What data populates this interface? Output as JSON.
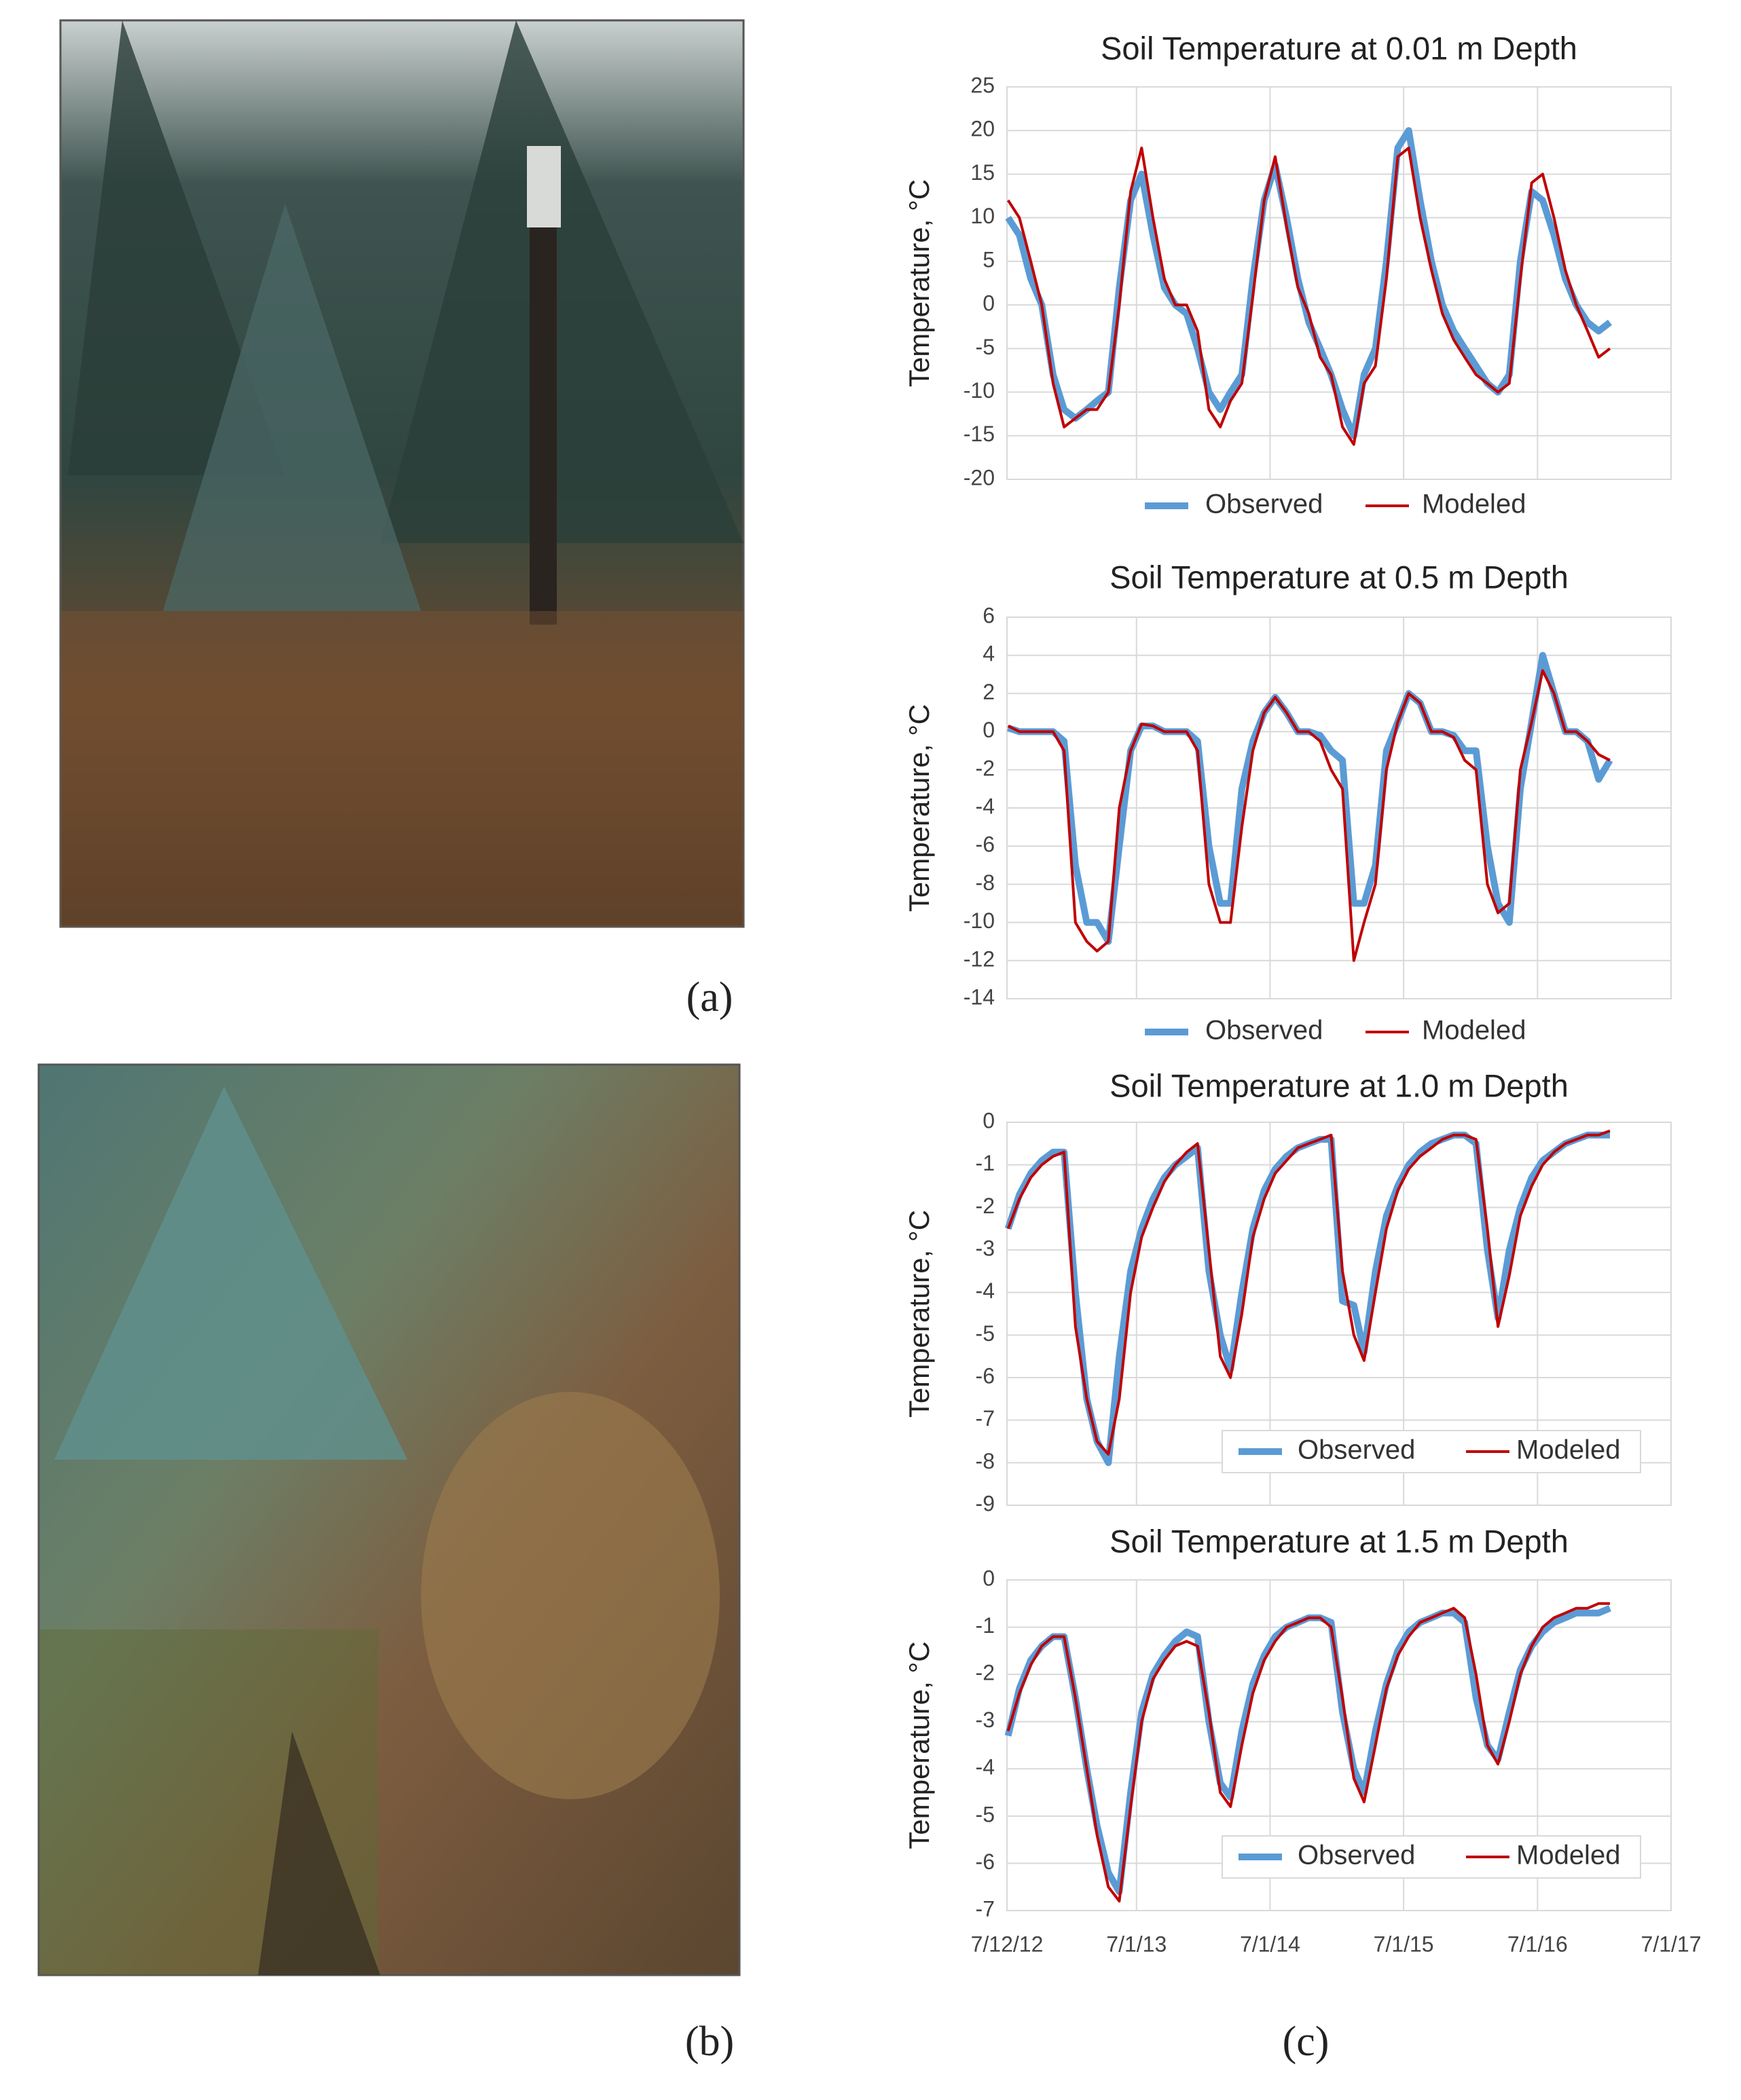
{
  "panel_labels": [
    "(a)",
    "(b)",
    "(c)"
  ],
  "chart_data": [
    {
      "type": "line",
      "title": "Soil Temperature at 0.01 m Depth",
      "y_label": "Temperature, °C",
      "legend": "bottom",
      "xlim": [
        "2012-07-12",
        "2017-07-01"
      ],
      "xticks": [
        "2012-07-12",
        "2013-07-01",
        "2014-07-01",
        "2015-07-01",
        "2016-07-01",
        "2017-07-01"
      ],
      "ylim": [
        -20,
        25
      ],
      "yticks": [
        -20,
        -15,
        -10,
        -5,
        0,
        5,
        10,
        15,
        20,
        25
      ],
      "grid": true,
      "x": [
        "2012-07-15",
        "2012-08-15",
        "2012-09-15",
        "2012-10-15",
        "2012-11-15",
        "2012-12-15",
        "2013-01-15",
        "2013-02-15",
        "2013-03-15",
        "2013-04-15",
        "2013-05-15",
        "2013-06-15",
        "2013-07-15",
        "2013-08-15",
        "2013-09-15",
        "2013-10-15",
        "2013-11-15",
        "2013-12-15",
        "2014-01-15",
        "2014-02-15",
        "2014-03-15",
        "2014-04-15",
        "2014-05-15",
        "2014-06-15",
        "2014-07-15",
        "2014-08-15",
        "2014-09-15",
        "2014-10-15",
        "2014-11-15",
        "2014-12-15",
        "2015-01-15",
        "2015-02-15",
        "2015-03-15",
        "2015-04-15",
        "2015-05-15",
        "2015-06-15",
        "2015-07-15",
        "2015-08-15",
        "2015-09-15",
        "2015-10-15",
        "2015-11-15",
        "2015-12-15",
        "2016-01-15",
        "2016-02-15",
        "2016-03-15",
        "2016-04-15",
        "2016-05-15",
        "2016-06-15",
        "2016-07-15",
        "2016-08-15",
        "2016-09-15",
        "2016-10-15",
        "2016-11-15",
        "2016-12-15",
        "2017-01-15"
      ],
      "series": [
        {
          "name": "Observed",
          "color": "#5b9bd5",
          "values": [
            10,
            8,
            3,
            0,
            -8,
            -12,
            -13,
            -12,
            -11,
            -10,
            2,
            12,
            15,
            8,
            2,
            0,
            -1,
            -5,
            -10,
            -12,
            -10,
            -8,
            3,
            12,
            16,
            10,
            3,
            -2,
            -5,
            -8,
            -12,
            -15,
            -8,
            -5,
            5,
            18,
            20,
            12,
            5,
            0,
            -3,
            -5,
            -7,
            -9,
            -10,
            -8,
            5,
            13,
            12,
            8,
            3,
            0,
            -2,
            -3,
            -2
          ]
        },
        {
          "name": "Modeled",
          "color": "#c00000",
          "values": [
            12,
            10,
            5,
            0,
            -9,
            -14,
            -13,
            -12,
            -12,
            -10,
            0,
            13,
            18,
            10,
            3,
            0,
            0,
            -3,
            -12,
            -14,
            -11,
            -9,
            1,
            12,
            17,
            9,
            2,
            -1,
            -6,
            -8,
            -14,
            -16,
            -9,
            -7,
            3,
            17,
            18,
            10,
            4,
            -1,
            -4,
            -6,
            -8,
            -9,
            -10,
            -9,
            3,
            14,
            15,
            10,
            4,
            0,
            -3,
            -6,
            -5
          ]
        }
      ]
    },
    {
      "type": "line",
      "title": "Soil Temperature at 0.5 m Depth",
      "y_label": "Temperature, °C",
      "legend": "bottom",
      "xlim": [
        "2012-07-12",
        "2017-07-01"
      ],
      "xticks": [
        "2012-07-12",
        "2013-07-01",
        "2014-07-01",
        "2015-07-01",
        "2016-07-01",
        "2017-07-01"
      ],
      "ylim": [
        -14,
        6
      ],
      "yticks": [
        -14,
        -12,
        -10,
        -8,
        -6,
        -4,
        -2,
        0,
        2,
        4,
        6
      ],
      "grid": true,
      "x": [
        "2012-07-15",
        "2012-08-15",
        "2012-09-15",
        "2012-10-15",
        "2012-11-15",
        "2012-12-15",
        "2013-01-15",
        "2013-02-15",
        "2013-03-15",
        "2013-04-15",
        "2013-05-15",
        "2013-06-15",
        "2013-07-15",
        "2013-08-15",
        "2013-09-15",
        "2013-10-15",
        "2013-11-15",
        "2013-12-15",
        "2014-01-15",
        "2014-02-15",
        "2014-03-15",
        "2014-04-15",
        "2014-05-15",
        "2014-06-15",
        "2014-07-15",
        "2014-08-15",
        "2014-09-15",
        "2014-10-15",
        "2014-11-15",
        "2014-12-15",
        "2015-01-15",
        "2015-02-15",
        "2015-03-15",
        "2015-04-15",
        "2015-05-15",
        "2015-06-15",
        "2015-07-15",
        "2015-08-15",
        "2015-09-15",
        "2015-10-15",
        "2015-11-15",
        "2015-12-15",
        "2016-01-15",
        "2016-02-15",
        "2016-03-15",
        "2016-04-15",
        "2016-05-15",
        "2016-06-15",
        "2016-07-15",
        "2016-08-15",
        "2016-09-15",
        "2016-10-15",
        "2016-11-15",
        "2016-12-15",
        "2017-01-15"
      ],
      "series": [
        {
          "name": "Observed",
          "color": "#5b9bd5",
          "values": [
            0.2,
            0,
            0,
            0,
            0,
            -0.5,
            -7,
            -10,
            -10,
            -11,
            -6,
            -1,
            0.3,
            0.3,
            0,
            0,
            0,
            -0.5,
            -6,
            -9,
            -9,
            -3,
            -0.5,
            1,
            1.8,
            1,
            0,
            0,
            -0.2,
            -1,
            -1.5,
            -9,
            -9,
            -7,
            -1,
            0.5,
            2,
            1.5,
            0,
            0,
            -0.2,
            -1,
            -1,
            -6,
            -9,
            -10,
            -3,
            0.5,
            4,
            2,
            0,
            0,
            -0.5,
            -2.5,
            -1.5
          ]
        },
        {
          "name": "Modeled",
          "color": "#c00000",
          "values": [
            0.3,
            0,
            0,
            0,
            0,
            -1,
            -10,
            -11,
            -11.5,
            -11,
            -4,
            -1,
            0.4,
            0.3,
            0,
            0,
            0,
            -1,
            -8,
            -10,
            -10,
            -5,
            -1,
            1,
            1.8,
            1,
            0,
            0,
            -0.5,
            -2,
            -3,
            -12,
            -10,
            -8,
            -2,
            0.5,
            2,
            1.5,
            0,
            0,
            -0.3,
            -1.5,
            -2,
            -8,
            -9.5,
            -9,
            -2,
            0.5,
            3.2,
            2,
            0,
            0,
            -0.5,
            -1.2,
            -1.5
          ]
        }
      ]
    },
    {
      "type": "line",
      "title": "Soil Temperature at 1.0 m Depth",
      "y_label": "Temperature, °C",
      "legend": "lower right",
      "xlim": [
        "2012-07-12",
        "2017-07-01"
      ],
      "xticks": [
        "2012-07-12",
        "2013-07-01",
        "2014-07-01",
        "2015-07-01",
        "2016-07-01",
        "2017-07-01"
      ],
      "ylim": [
        -9,
        0
      ],
      "yticks": [
        -9,
        -8,
        -7,
        -6,
        -5,
        -4,
        -3,
        -2,
        -1,
        0
      ],
      "grid": true,
      "x": [
        "2012-07-15",
        "2012-08-15",
        "2012-09-15",
        "2012-10-15",
        "2012-11-15",
        "2012-12-15",
        "2013-01-15",
        "2013-02-15",
        "2013-03-15",
        "2013-04-15",
        "2013-05-15",
        "2013-06-15",
        "2013-07-15",
        "2013-08-15",
        "2013-09-15",
        "2013-10-15",
        "2013-11-15",
        "2013-12-15",
        "2014-01-15",
        "2014-02-15",
        "2014-03-15",
        "2014-04-15",
        "2014-05-15",
        "2014-06-15",
        "2014-07-15",
        "2014-08-15",
        "2014-09-15",
        "2014-10-15",
        "2014-11-15",
        "2014-12-15",
        "2015-01-15",
        "2015-02-15",
        "2015-03-15",
        "2015-04-15",
        "2015-05-15",
        "2015-06-15",
        "2015-07-15",
        "2015-08-15",
        "2015-09-15",
        "2015-10-15",
        "2015-11-15",
        "2015-12-15",
        "2016-01-15",
        "2016-02-15",
        "2016-03-15",
        "2016-04-15",
        "2016-05-15",
        "2016-06-15",
        "2016-07-15",
        "2016-08-15",
        "2016-09-15",
        "2016-10-15",
        "2016-11-15",
        "2016-12-15",
        "2017-01-15"
      ],
      "series": [
        {
          "name": "Observed",
          "color": "#5b9bd5",
          "values": [
            -2.5,
            -1.7,
            -1.2,
            -0.9,
            -0.7,
            -0.7,
            -4.0,
            -6.5,
            -7.5,
            -8.0,
            -5.5,
            -3.5,
            -2.5,
            -1.8,
            -1.3,
            -1.0,
            -0.8,
            -0.6,
            -3.5,
            -5.0,
            -5.8,
            -4.0,
            -2.5,
            -1.6,
            -1.1,
            -0.8,
            -0.6,
            -0.5,
            -0.4,
            -0.4,
            -4.2,
            -4.3,
            -5.4,
            -3.5,
            -2.2,
            -1.5,
            -1.0,
            -0.7,
            -0.5,
            -0.4,
            -0.3,
            -0.3,
            -0.5,
            -3.0,
            -4.6,
            -3.0,
            -2.0,
            -1.3,
            -0.9,
            -0.7,
            -0.5,
            -0.4,
            -0.3,
            -0.3,
            -0.3
          ]
        },
        {
          "name": "Modeled",
          "color": "#c00000",
          "values": [
            -2.5,
            -1.8,
            -1.3,
            -1.0,
            -0.8,
            -0.7,
            -4.8,
            -6.5,
            -7.5,
            -7.8,
            -6.5,
            -4.0,
            -2.7,
            -2.0,
            -1.4,
            -1.0,
            -0.7,
            -0.5,
            -3.0,
            -5.5,
            -6.0,
            -4.5,
            -2.7,
            -1.8,
            -1.2,
            -0.9,
            -0.6,
            -0.5,
            -0.4,
            -0.3,
            -3.5,
            -5.0,
            -5.6,
            -4.0,
            -2.5,
            -1.6,
            -1.1,
            -0.8,
            -0.6,
            -0.4,
            -0.3,
            -0.3,
            -0.4,
            -2.5,
            -4.8,
            -3.6,
            -2.2,
            -1.5,
            -1.0,
            -0.7,
            -0.5,
            -0.4,
            -0.3,
            -0.3,
            -0.2
          ]
        }
      ]
    },
    {
      "type": "line",
      "title": "Soil Temperature at 1.5 m Depth",
      "y_label": "Temperature, °C",
      "legend": "lower right",
      "xlim": [
        "2012-07-12",
        "2017-07-01"
      ],
      "xticks": [
        {
          "value": "2012-07-12",
          "label": "7/12/12"
        },
        {
          "value": "2013-07-01",
          "label": "7/1/13"
        },
        {
          "value": "2014-07-01",
          "label": "7/1/14"
        },
        {
          "value": "2015-07-01",
          "label": "7/1/15"
        },
        {
          "value": "2016-07-01",
          "label": "7/1/16"
        },
        {
          "value": "2017-07-01",
          "label": "7/1/17"
        }
      ],
      "ylim": [
        -7,
        0
      ],
      "yticks": [
        -7,
        -6,
        -5,
        -4,
        -3,
        -2,
        -1,
        0
      ],
      "grid": true,
      "x": [
        "2012-07-15",
        "2012-08-15",
        "2012-09-15",
        "2012-10-15",
        "2012-11-15",
        "2012-12-15",
        "2013-01-15",
        "2013-02-15",
        "2013-03-15",
        "2013-04-15",
        "2013-05-15",
        "2013-06-15",
        "2013-07-15",
        "2013-08-15",
        "2013-09-15",
        "2013-10-15",
        "2013-11-15",
        "2013-12-15",
        "2014-01-15",
        "2014-02-15",
        "2014-03-15",
        "2014-04-15",
        "2014-05-15",
        "2014-06-15",
        "2014-07-15",
        "2014-08-15",
        "2014-09-15",
        "2014-10-15",
        "2014-11-15",
        "2014-12-15",
        "2015-01-15",
        "2015-02-15",
        "2015-03-15",
        "2015-04-15",
        "2015-05-15",
        "2015-06-15",
        "2015-07-15",
        "2015-08-15",
        "2015-09-15",
        "2015-10-15",
        "2015-11-15",
        "2015-12-15",
        "2016-01-15",
        "2016-02-15",
        "2016-03-15",
        "2016-04-15",
        "2016-05-15",
        "2016-06-15",
        "2016-07-15",
        "2016-08-15",
        "2016-09-15",
        "2016-10-15",
        "2016-11-15",
        "2016-12-15",
        "2017-01-15"
      ],
      "series": [
        {
          "name": "Observed",
          "color": "#5b9bd5",
          "values": [
            -3.3,
            -2.3,
            -1.7,
            -1.4,
            -1.2,
            -1.2,
            -2.5,
            -4.0,
            -5.2,
            -6.2,
            -6.6,
            -4.5,
            -2.8,
            -2.0,
            -1.6,
            -1.3,
            -1.1,
            -1.2,
            -3.0,
            -4.3,
            -4.6,
            -3.2,
            -2.2,
            -1.6,
            -1.2,
            -1.0,
            -0.9,
            -0.8,
            -0.8,
            -0.9,
            -2.8,
            -4.0,
            -4.5,
            -3.2,
            -2.2,
            -1.5,
            -1.1,
            -0.9,
            -0.8,
            -0.7,
            -0.7,
            -0.9,
            -2.5,
            -3.5,
            -3.8,
            -2.8,
            -1.9,
            -1.4,
            -1.1,
            -0.9,
            -0.8,
            -0.7,
            -0.7,
            -0.7,
            -0.6
          ]
        },
        {
          "name": "Modeled",
          "color": "#c00000",
          "values": [
            -3.2,
            -2.4,
            -1.8,
            -1.4,
            -1.2,
            -1.2,
            -2.5,
            -4.0,
            -5.4,
            -6.5,
            -6.8,
            -4.8,
            -3.0,
            -2.1,
            -1.7,
            -1.4,
            -1.3,
            -1.4,
            -2.8,
            -4.5,
            -4.8,
            -3.5,
            -2.4,
            -1.7,
            -1.3,
            -1.0,
            -0.9,
            -0.8,
            -0.8,
            -1.0,
            -2.5,
            -4.2,
            -4.7,
            -3.5,
            -2.3,
            -1.6,
            -1.2,
            -0.9,
            -0.8,
            -0.7,
            -0.6,
            -0.8,
            -2.0,
            -3.5,
            -3.9,
            -3.0,
            -2.0,
            -1.4,
            -1.0,
            -0.8,
            -0.7,
            -0.6,
            -0.6,
            -0.5,
            -0.5
          ]
        }
      ]
    }
  ]
}
